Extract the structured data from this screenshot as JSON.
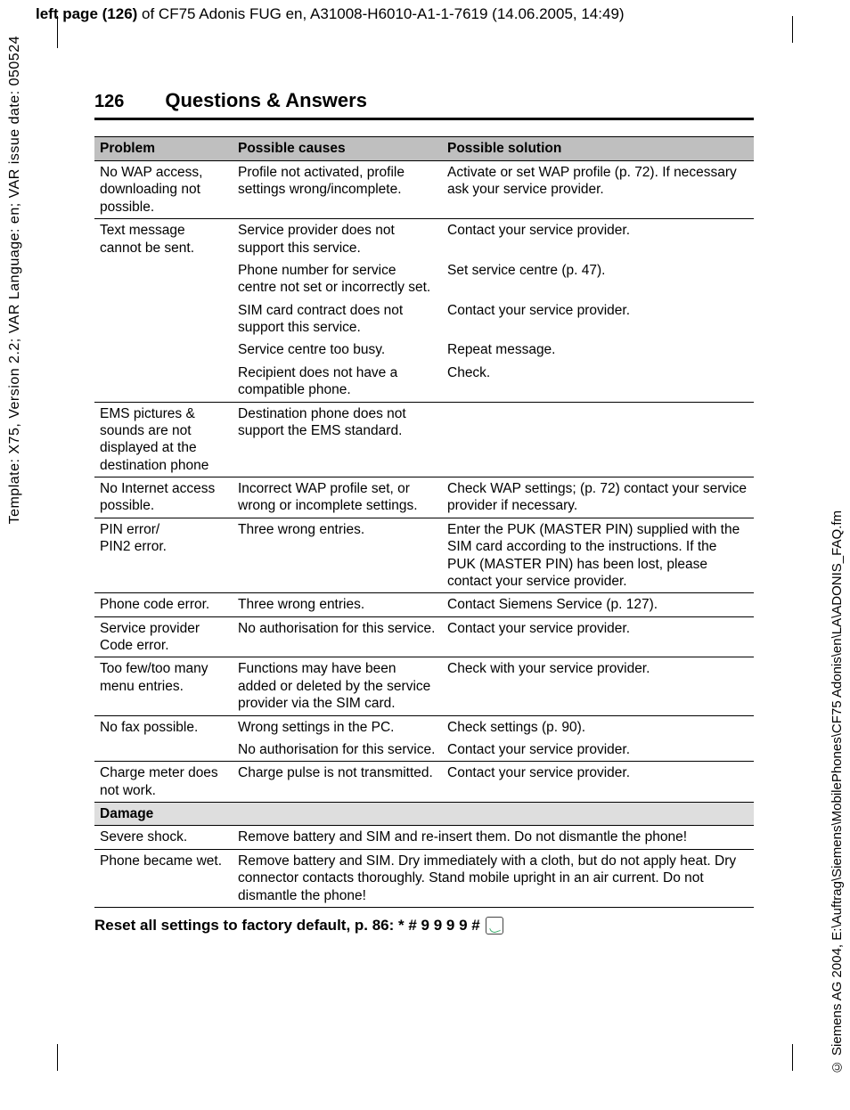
{
  "doc_header": {
    "prefix": "left page (126)",
    "rest": " of CF75 Adonis FUG en, A31008-H6010-A1-1-7619 (14.06.2005, 14:49)"
  },
  "left_margin_text": "Template: X75, Version 2.2; VAR Language: en; VAR issue date: 050524",
  "right_margin_text": "© Siemens AG 2004, E:\\Auftrag\\Siemens\\MobilePhones\\CF75 Adonis\\en\\LA\\ADONIS_FAQ.fm",
  "page_number": "126",
  "page_title": "Questions & Answers",
  "columns": {
    "c1": "Problem",
    "c2": "Possible causes",
    "c3": "Possible solution"
  },
  "rows": {
    "r1": {
      "p": "No WAP access, downloading not possible.",
      "c": "Profile not activated, profile settings wrong/incomplete.",
      "s": "Activate or set WAP profile (p. 72). If necessary ask your service provider."
    },
    "r2": {
      "p": "Text message cannot be sent.",
      "c": "Service provider does not support this service.",
      "s": "Contact your service provider."
    },
    "r2b": {
      "c": "Phone number for service centre not set or incorrectly set.",
      "s": "Set service centre (p. 47)."
    },
    "r2c": {
      "c": "SIM card contract does not support this service.",
      "s": "Contact your service provider."
    },
    "r2d": {
      "c": "Service centre too busy.",
      "s": "Repeat message."
    },
    "r2e": {
      "c": "Recipient does not have a compatible phone.",
      "s": "Check."
    },
    "r3": {
      "p": "EMS pictures & sounds are not displayed at the destination phone",
      "c": "Destination phone does not support the EMS standard.",
      "s": ""
    },
    "r4": {
      "p": "No Internet access possible.",
      "c": "Incorrect WAP profile set, or wrong or incomplete settings.",
      "s": "Check WAP settings; (p. 72) contact your service provider if necessary."
    },
    "r5": {
      "p": "PIN error/\nPIN2 error.",
      "c": "Three wrong entries.",
      "s": "Enter the PUK (MASTER PIN) supplied with the SIM card according to the instructions. If the PUK (MASTER PIN) has been lost, please contact your service provider."
    },
    "r6": {
      "p": "Phone code error.",
      "c": "Three wrong entries.",
      "s": "Contact Siemens Service (p. 127)."
    },
    "r7": {
      "p": "Service provider Code error.",
      "c": "No authorisation for this service.",
      "s": "Contact your service provider."
    },
    "r8": {
      "p": "Too few/too many menu entries.",
      "c": "Functions may have been added or deleted by the service provider via the SIM card.",
      "s": "Check with your service provider."
    },
    "r9": {
      "p": "No fax possible.",
      "c": "Wrong settings in the PC.",
      "s": "Check settings (p. 90)."
    },
    "r9b": {
      "c": "No authorisation for this service.",
      "s": "Contact your service provider."
    },
    "r10": {
      "p": "Charge meter does not work.",
      "c": "Charge pulse is not transmitted.",
      "s": "Contact your service provider."
    },
    "dmg": "Damage",
    "r11": {
      "p": "Severe shock.",
      "cs": "Remove battery and SIM and re-insert them. Do not dismantle the phone!"
    },
    "r12": {
      "p": "Phone became wet.",
      "cs": "Remove battery and SIM. Dry immediately with a cloth, but do not apply heat. Dry connector contacts thoroughly. Stand mobile upright in an air current. Do not dismantle the phone!"
    }
  },
  "reset_line": "Reset all settings to factory default, p. 86: * # 9 9 9 9 #",
  "colors": {
    "header_bg": "#bfbfbf",
    "subhead_bg": "#dedede",
    "text": "#000000",
    "page_bg": "#ffffff"
  }
}
